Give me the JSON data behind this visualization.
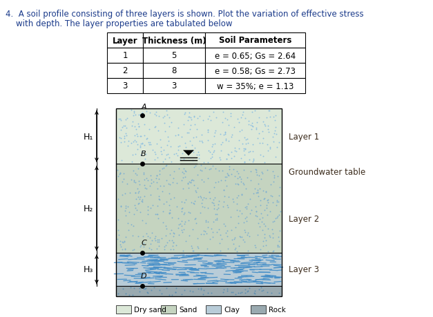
{
  "title_line1": "4.  A soil profile consisting of three layers is shown. Plot the variation of effective stress",
  "title_line2": "    with depth. The layer properties are tabulated below",
  "table_headers": [
    "Layer",
    "Thickness (m)",
    "Soil Parameters"
  ],
  "table_rows": [
    [
      "1",
      "5",
      "e = 0.65; Gs = 2.64"
    ],
    [
      "2",
      "8",
      "e = 0.58; Gs = 2.73"
    ],
    [
      "3",
      "3",
      "w = 35%; e = 1.13"
    ]
  ],
  "layer1_label": "Layer 1",
  "layer2_label": "Layer 2",
  "layer3_label": "Layer 3",
  "gwt_label": "Groundwater table",
  "legend_items": [
    "Dry sand",
    "Sand",
    "Clay",
    "Rock"
  ],
  "H1_label": "H₁",
  "H2_label": "H₂",
  "H3_label": "H₃",
  "points": [
    "A",
    "B",
    "C",
    "D"
  ],
  "fig_width": 6.27,
  "fig_height": 4.6,
  "dpi": 100,
  "dry_sand_color": "#dce8d8",
  "sand_color": "#c5d4c0",
  "clay_color": "#b8ccd8",
  "rock_color": "#9aaab0",
  "dot_color_light": "#90c0e0",
  "dot_color_medium": "#78a8c8",
  "title_color": "#1a3a8a",
  "label_color": "#3a2a1a"
}
